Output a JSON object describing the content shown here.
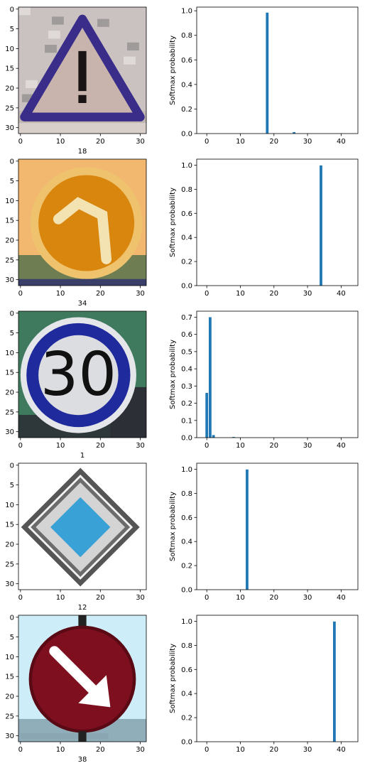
{
  "chart_data": [
    {
      "type": "image",
      "image_size": [
        32,
        32
      ],
      "x_ticks": [
        0,
        10,
        20,
        30
      ],
      "y_ticks": [
        0,
        5,
        10,
        15,
        20,
        25,
        30
      ],
      "xlabel": "18",
      "sign": "general-caution-triangle",
      "colors": {
        "sky": "#c9c2c0",
        "sign_fill": "#c8b4ac",
        "border": "#3a2d8a",
        "symbol": "#1a1414",
        "ground": "#bfb5b0"
      }
    },
    {
      "type": "bar",
      "x": [
        0,
        1,
        2,
        3,
        4,
        5,
        6,
        7,
        8,
        9,
        10,
        11,
        12,
        13,
        14,
        15,
        16,
        17,
        18,
        19,
        20,
        21,
        22,
        23,
        24,
        25,
        26,
        27,
        28,
        29,
        30,
        31,
        32,
        33,
        34,
        35,
        36,
        37,
        38,
        39,
        40,
        41,
        42
      ],
      "values": [
        0,
        0,
        0,
        0,
        0,
        0,
        0,
        0,
        0,
        0,
        0,
        0,
        0,
        0,
        0,
        0,
        0,
        0,
        0.985,
        0,
        0,
        0,
        0,
        0,
        0,
        0,
        0.012,
        0,
        0,
        0,
        0,
        0,
        0,
        0,
        0,
        0,
        0,
        0,
        0,
        0,
        0,
        0,
        0
      ],
      "ylabel": "Softmax probability",
      "xlim": [
        -3,
        45
      ],
      "ylim": [
        0,
        1.03
      ],
      "x_ticks": [
        0,
        10,
        20,
        30,
        40
      ],
      "y_ticks": [
        0.0,
        0.2,
        0.4,
        0.6,
        0.8,
        1.0
      ],
      "color": "#1f77b4"
    },
    {
      "type": "image",
      "image_size": [
        32,
        32
      ],
      "x_ticks": [
        0,
        10,
        20,
        30
      ],
      "y_ticks": [
        0,
        5,
        10,
        15,
        20,
        25,
        30
      ],
      "xlabel": "34",
      "sign": "turn-left-ahead-circle",
      "colors": {
        "sky": "#f2b870",
        "sign_fill": "#d9860e",
        "border": "#efc36e",
        "symbol": "#f4e3b2",
        "ground": "#5c6b48"
      }
    },
    {
      "type": "bar",
      "x": [
        0,
        1,
        2,
        3,
        4,
        5,
        6,
        7,
        8,
        9,
        10,
        11,
        12,
        13,
        14,
        15,
        16,
        17,
        18,
        19,
        20,
        21,
        22,
        23,
        24,
        25,
        26,
        27,
        28,
        29,
        30,
        31,
        32,
        33,
        34,
        35,
        36,
        37,
        38,
        39,
        40,
        41,
        42
      ],
      "values": [
        0,
        0,
        0,
        0,
        0,
        0,
        0,
        0,
        0,
        0,
        0,
        0,
        0,
        0,
        0,
        0,
        0,
        0,
        0,
        0,
        0,
        0,
        0,
        0,
        0,
        0,
        0,
        0,
        0,
        0,
        0,
        0,
        0,
        0,
        0.998,
        0,
        0,
        0,
        0,
        0,
        0,
        0,
        0
      ],
      "ylabel": "Softmax probability",
      "xlim": [
        -3,
        45
      ],
      "ylim": [
        0,
        1.05
      ],
      "x_ticks": [
        0,
        10,
        20,
        30,
        40
      ],
      "y_ticks": [
        0.0,
        0.2,
        0.4,
        0.6,
        0.8,
        1.0
      ],
      "color": "#1f77b4"
    },
    {
      "type": "image",
      "image_size": [
        32,
        32
      ],
      "x_ticks": [
        0,
        10,
        20,
        30
      ],
      "y_ticks": [
        0,
        5,
        10,
        15,
        20,
        25,
        30
      ],
      "xlabel": "1",
      "sign": "speed-limit-30",
      "sign_text": "30",
      "colors": {
        "sky": "#3f7a5e",
        "sign_fill": "#dcdde0",
        "border": "#1f2a9c",
        "symbol": "#111111",
        "ground": "#2c3036"
      }
    },
    {
      "type": "bar",
      "x": [
        0,
        1,
        2,
        3,
        4,
        5,
        6,
        7,
        8,
        9,
        10,
        11,
        12,
        13,
        14,
        15,
        16,
        17,
        18,
        19,
        20,
        21,
        22,
        23,
        24,
        25,
        26,
        27,
        28,
        29,
        30,
        31,
        32,
        33,
        34,
        35,
        36,
        37,
        38,
        39,
        40,
        41,
        42
      ],
      "values": [
        0.26,
        0.7,
        0.015,
        0,
        0,
        0,
        0,
        0,
        0.004,
        0,
        0,
        0,
        0,
        0,
        0,
        0,
        0,
        0,
        0,
        0,
        0,
        0,
        0,
        0,
        0,
        0,
        0,
        0,
        0,
        0,
        0,
        0,
        0,
        0,
        0,
        0,
        0,
        0,
        0,
        0,
        0,
        0,
        0
      ],
      "ylabel": "Softmax probability",
      "xlim": [
        -3,
        45
      ],
      "ylim": [
        0,
        0.735
      ],
      "x_ticks": [
        0,
        10,
        20,
        30,
        40
      ],
      "y_ticks": [
        0.0,
        0.1,
        0.2,
        0.3,
        0.4,
        0.5,
        0.6,
        0.7
      ],
      "color": "#1f77b4"
    },
    {
      "type": "image",
      "image_size": [
        32,
        32
      ],
      "x_ticks": [
        0,
        10,
        20,
        30
      ],
      "y_ticks": [
        0,
        5,
        10,
        15,
        20,
        25,
        30
      ],
      "xlabel": "12",
      "sign": "priority-road-diamond",
      "colors": {
        "sky": "#ffffff",
        "sign_fill": "#d4d4d4",
        "border": "#555555",
        "symbol": "#3aa1d6",
        "ground": "#ffffff"
      }
    },
    {
      "type": "bar",
      "x": [
        0,
        1,
        2,
        3,
        4,
        5,
        6,
        7,
        8,
        9,
        10,
        11,
        12,
        13,
        14,
        15,
        16,
        17,
        18,
        19,
        20,
        21,
        22,
        23,
        24,
        25,
        26,
        27,
        28,
        29,
        30,
        31,
        32,
        33,
        34,
        35,
        36,
        37,
        38,
        39,
        40,
        41,
        42
      ],
      "values": [
        0,
        0,
        0,
        0,
        0,
        0,
        0,
        0,
        0,
        0,
        0,
        0,
        0.998,
        0,
        0,
        0,
        0,
        0,
        0,
        0,
        0,
        0,
        0,
        0,
        0,
        0,
        0,
        0,
        0,
        0,
        0,
        0,
        0,
        0,
        0,
        0,
        0,
        0,
        0,
        0,
        0,
        0,
        0
      ],
      "ylabel": "Softmax probability",
      "xlim": [
        -3,
        45
      ],
      "ylim": [
        0,
        1.05
      ],
      "x_ticks": [
        0,
        10,
        20,
        30,
        40
      ],
      "y_ticks": [
        0.0,
        0.2,
        0.4,
        0.6,
        0.8,
        1.0
      ],
      "color": "#1f77b4"
    },
    {
      "type": "image",
      "image_size": [
        32,
        32
      ],
      "x_ticks": [
        0,
        10,
        20,
        30
      ],
      "y_ticks": [
        0,
        5,
        10,
        15,
        20,
        25,
        30
      ],
      "xlabel": "38",
      "sign": "keep-right-circle",
      "colors": {
        "sky": "#cdeef8",
        "sign_fill": "#7e0f1e",
        "border": "#5a0a14",
        "symbol": "#ffffff",
        "ground": "#8aa6b2"
      }
    },
    {
      "type": "bar",
      "x": [
        0,
        1,
        2,
        3,
        4,
        5,
        6,
        7,
        8,
        9,
        10,
        11,
        12,
        13,
        14,
        15,
        16,
        17,
        18,
        19,
        20,
        21,
        22,
        23,
        24,
        25,
        26,
        27,
        28,
        29,
        30,
        31,
        32,
        33,
        34,
        35,
        36,
        37,
        38,
        39,
        40,
        41,
        42
      ],
      "values": [
        0,
        0,
        0,
        0,
        0,
        0,
        0,
        0,
        0,
        0,
        0,
        0,
        0,
        0,
        0,
        0,
        0,
        0,
        0,
        0,
        0,
        0,
        0,
        0,
        0,
        0,
        0,
        0,
        0,
        0,
        0,
        0,
        0,
        0,
        0,
        0,
        0,
        0,
        0.998,
        0,
        0,
        0,
        0
      ],
      "ylabel": "Softmax probability",
      "xlim": [
        -3,
        45
      ],
      "ylim": [
        0,
        1.05
      ],
      "x_ticks": [
        0,
        10,
        20,
        30,
        40
      ],
      "y_ticks": [
        0.0,
        0.2,
        0.4,
        0.6,
        0.8,
        1.0
      ],
      "color": "#1f77b4"
    }
  ]
}
